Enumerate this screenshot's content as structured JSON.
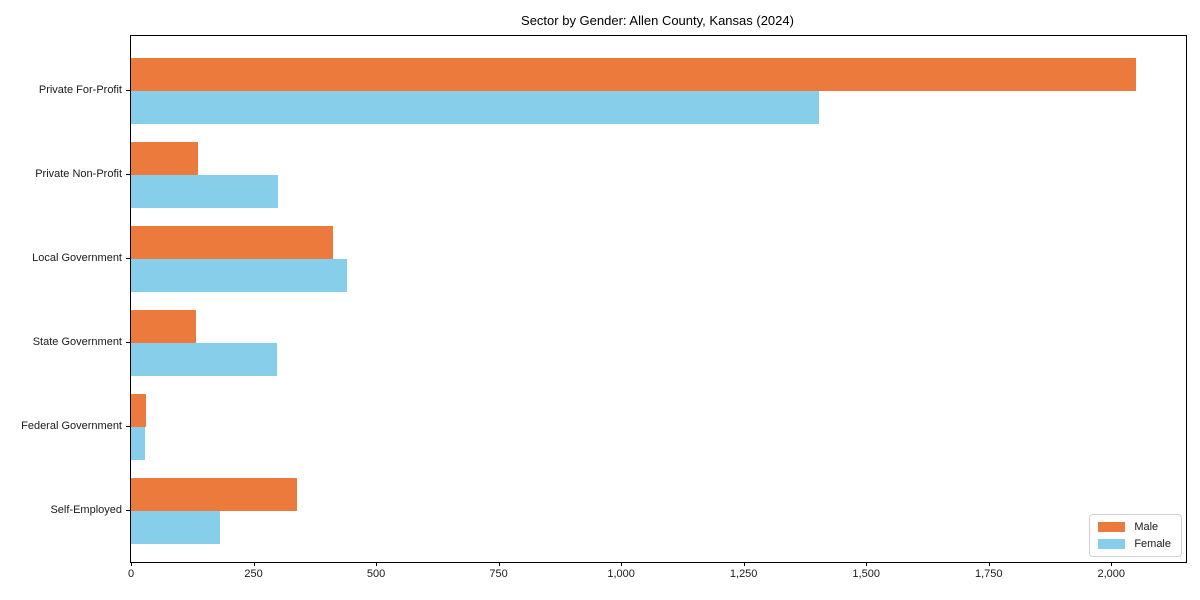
{
  "chart_data": {
    "type": "bar",
    "orientation": "horizontal",
    "title": "Sector by Gender: Allen County, Kansas (2024)",
    "categories": [
      "Private For-Profit",
      "Private Non-Profit",
      "Local Government",
      "State Government",
      "Federal Government",
      "Self-Employed"
    ],
    "series": [
      {
        "name": "Male",
        "color": "#EC7A3C",
        "values": [
          2050,
          136,
          413,
          133,
          30,
          339
        ]
      },
      {
        "name": "Female",
        "color": "#87CEEB",
        "values": [
          1404,
          300,
          441,
          297,
          28,
          182
        ]
      }
    ],
    "xlabel": "",
    "ylabel": "",
    "xlim": [
      0,
      2152.5
    ],
    "x_ticks": [
      {
        "value": 0,
        "label": "0"
      },
      {
        "value": 250,
        "label": "250"
      },
      {
        "value": 500,
        "label": "500"
      },
      {
        "value": 750,
        "label": "750"
      },
      {
        "value": 1000,
        "label": "1,000"
      },
      {
        "value": 1250,
        "label": "1,250"
      },
      {
        "value": 1500,
        "label": "1,500"
      },
      {
        "value": 1750,
        "label": "1,750"
      },
      {
        "value": 2000,
        "label": "2,000"
      }
    ],
    "grid": false,
    "legend_position": "lower right",
    "legend_entries": [
      "Male",
      "Female"
    ]
  }
}
